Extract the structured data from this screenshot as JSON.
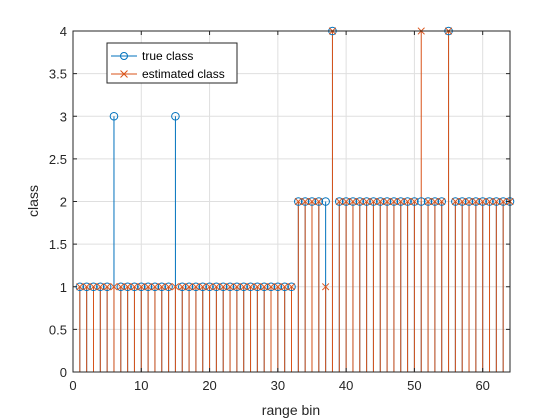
{
  "chart_data": {
    "type": "stem",
    "xlabel": "range bin",
    "ylabel": "class",
    "xlim": [
      0,
      64
    ],
    "ylim": [
      0,
      4
    ],
    "xticks": [
      0,
      10,
      20,
      30,
      40,
      50,
      60
    ],
    "yticks": [
      0,
      0.5,
      1,
      1.5,
      2,
      2.5,
      3,
      3.5,
      4
    ],
    "ytick_labels": [
      "0",
      "0.5",
      "1",
      "1.5",
      "2",
      "2.5",
      "3",
      "3.5",
      "4"
    ],
    "grid": true,
    "legend_position": "top-left",
    "x": [
      1,
      2,
      3,
      4,
      5,
      6,
      7,
      8,
      9,
      10,
      11,
      12,
      13,
      14,
      15,
      16,
      17,
      18,
      19,
      20,
      21,
      22,
      23,
      24,
      25,
      26,
      27,
      28,
      29,
      30,
      31,
      32,
      33,
      34,
      35,
      36,
      37,
      38,
      39,
      40,
      41,
      42,
      43,
      44,
      45,
      46,
      47,
      48,
      49,
      50,
      51,
      52,
      53,
      54,
      55,
      56,
      57,
      58,
      59,
      60,
      61,
      62,
      63,
      64
    ],
    "series": [
      {
        "name": "true class",
        "marker": "circle",
        "color": "#0072BD",
        "values": [
          1,
          1,
          1,
          1,
          1,
          3,
          1,
          1,
          1,
          1,
          1,
          1,
          1,
          1,
          3,
          1,
          1,
          1,
          1,
          1,
          1,
          1,
          1,
          1,
          1,
          1,
          1,
          1,
          1,
          1,
          1,
          1,
          2,
          2,
          2,
          2,
          2,
          4,
          2,
          2,
          2,
          2,
          2,
          2,
          2,
          2,
          2,
          2,
          2,
          2,
          2,
          2,
          2,
          2,
          4,
          2,
          2,
          2,
          2,
          2,
          2,
          2,
          2,
          2
        ]
      },
      {
        "name": "estimated class",
        "marker": "x",
        "color": "#D95319",
        "values": [
          1,
          1,
          1,
          1,
          1,
          1,
          1,
          1,
          1,
          1,
          1,
          1,
          1,
          1,
          1,
          1,
          1,
          1,
          1,
          1,
          1,
          1,
          1,
          1,
          1,
          1,
          1,
          1,
          1,
          1,
          1,
          1,
          2,
          2,
          2,
          2,
          1,
          4,
          2,
          2,
          2,
          2,
          2,
          2,
          2,
          2,
          2,
          2,
          2,
          2,
          4,
          2,
          2,
          2,
          4,
          2,
          2,
          2,
          2,
          2,
          2,
          2,
          2,
          2
        ]
      }
    ]
  }
}
